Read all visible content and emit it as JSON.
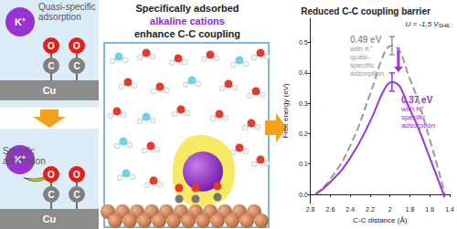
{
  "left_panel": {
    "top_box": {
      "title": [
        "Quasi-specific",
        "adsorption"
      ],
      "cation": "K⁺",
      "atoms_top": [
        "O",
        "O"
      ],
      "atoms_bottom": [
        "C",
        "C"
      ],
      "surface": "Cu"
    },
    "bottom_box": {
      "title": [
        "Specific",
        "adsorption"
      ],
      "cation": "K⁺",
      "atoms_top": [
        "O",
        "O"
      ],
      "atoms_bottom": [
        "C",
        "C"
      ],
      "surface": "Cu"
    }
  },
  "middle_panel": {
    "title": [
      "Specifically adsorbed",
      "alkaline cations",
      "enhance C-C coupling"
    ]
  },
  "chart_data": {
    "type": "line",
    "title": "Reduced C-C coupling barrier",
    "subtitle": {
      "text": "U = -1.5 V",
      "subscript": "SHE"
    },
    "x_label": "C-C distance (Å)",
    "y_label": "Free energy (eV)",
    "xlim": [
      2.8,
      1.4
    ],
    "xticks": [
      2.8,
      2.6,
      2.4,
      2.2,
      2.0,
      1.8,
      1.6,
      1.4
    ],
    "ylim": [
      -0.03,
      0.58
    ],
    "yticks": [
      {
        "value": 0,
        "label": "0.0"
      },
      0.1,
      0.2,
      0.3,
      0.4,
      0.5
    ],
    "grid": false,
    "series": [
      {
        "name": "with K⁺ quasi-specific adsorption",
        "color": "#9a9a9a",
        "line_style": "dashed",
        "x": [
          2.75,
          2.6,
          2.4,
          2.2,
          2.05,
          1.98,
          1.8,
          1.6,
          1.45
        ],
        "values": [
          0.0,
          0.05,
          0.16,
          0.33,
          0.47,
          0.49,
          0.38,
          0.18,
          0.0
        ],
        "errors": [
          null,
          null,
          null,
          null,
          null,
          0.03,
          null,
          null,
          null
        ],
        "annotation": [
          "0.49 eV",
          "with K⁺",
          "quasi-",
          "specific",
          "adsorption"
        ]
      },
      {
        "name": "with K⁺ specific adsorption",
        "color": "#a033d6",
        "line_style": "solid",
        "x": [
          2.75,
          2.6,
          2.4,
          2.2,
          2.05,
          1.98,
          1.8,
          1.6,
          1.45
        ],
        "values": [
          0.0,
          0.04,
          0.12,
          0.24,
          0.35,
          0.37,
          0.28,
          0.12,
          -0.01
        ],
        "errors": [
          null,
          null,
          null,
          null,
          null,
          0.03,
          null,
          null,
          null
        ],
        "annotation": [
          "0.37 eV",
          "with K⁺",
          "specific",
          "adsorption"
        ]
      }
    ]
  }
}
